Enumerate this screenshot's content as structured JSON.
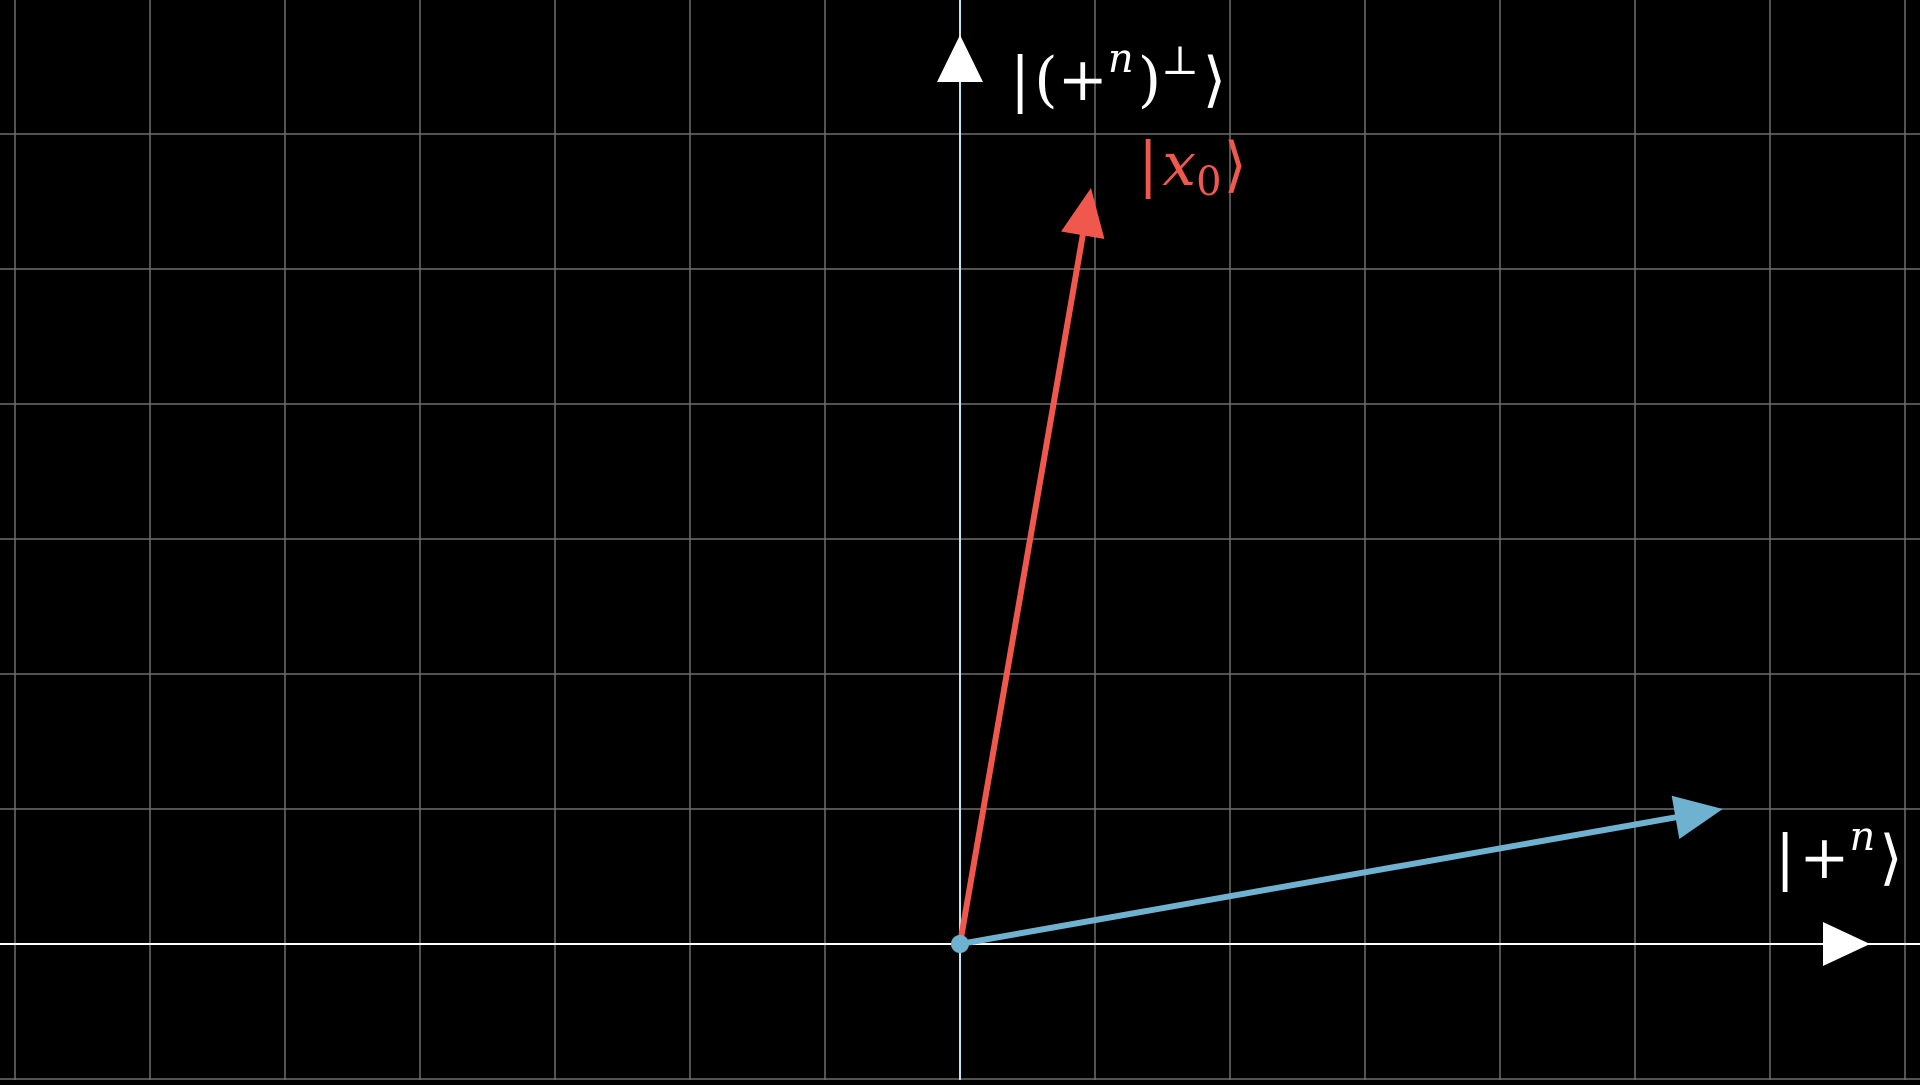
{
  "colors": {
    "background": "#000000",
    "grid": "#6e6e6e",
    "axis": "#ffffff",
    "axis_tint": "#bfe6f2",
    "vector_x0": "#f0584e",
    "vector_plus": "#6fb2cf"
  },
  "axes": {
    "x_label_icon": "arrowhead-right-icon",
    "y_label_icon": "arrowhead-up-icon"
  },
  "vectors": {
    "x0": {
      "label": {
        "bar": "|",
        "var": "x",
        "sub": "0",
        "close": "⟩"
      },
      "components": [
        0.97,
        5.6
      ]
    },
    "plus": {
      "label": {
        "bar": "|",
        "plus": "+",
        "sup": "n",
        "close": "⟩"
      },
      "components": [
        5.65,
        1.0
      ]
    }
  },
  "y_axis_label": {
    "bar": "|",
    "open": "(",
    "plus": "+",
    "sup": "n",
    "paren_close": ")",
    "perp": "⊥",
    "close": "⟩"
  },
  "origin_dot_icon": "dot-icon"
}
